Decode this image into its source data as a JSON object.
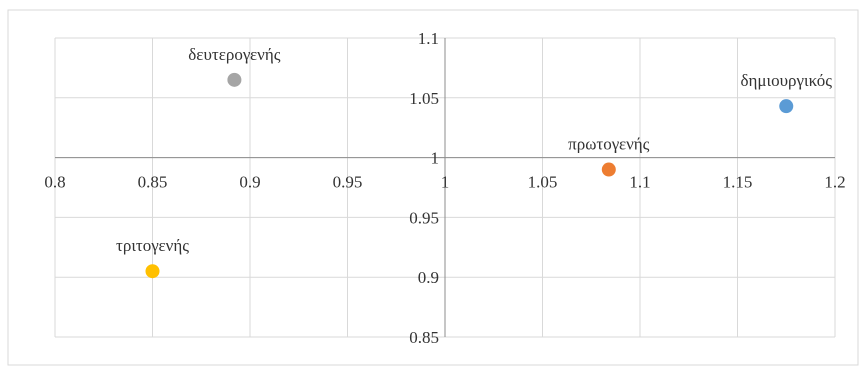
{
  "chart_data": {
    "type": "scatter",
    "xlim": [
      0.8,
      1.2
    ],
    "ylim": [
      0.85,
      1.1
    ],
    "x_ticks": [
      "0.8",
      "0.85",
      "0.9",
      "0.95",
      "1",
      "1.05",
      "1.1",
      "1.15",
      "1.2"
    ],
    "y_ticks": [
      "0.85",
      "0.9",
      "0.95",
      "1",
      "1.05",
      "1.1"
    ],
    "x_tick_values": [
      0.8,
      0.85,
      0.9,
      0.95,
      1.0,
      1.05,
      1.1,
      1.15,
      1.2
    ],
    "y_tick_values": [
      0.85,
      0.9,
      0.95,
      1.0,
      1.05,
      1.1
    ],
    "axis_cross": {
      "x": 1.0,
      "y": 1.0
    },
    "grid": true,
    "points": [
      {
        "label": "δευτερογενής",
        "x": 0.892,
        "y": 1.065,
        "color": "#a5a5a5"
      },
      {
        "label": "δημιουργικός",
        "x": 1.175,
        "y": 1.043,
        "color": "#5b9bd5"
      },
      {
        "label": "πρωτογενής",
        "x": 1.084,
        "y": 0.99,
        "color": "#ed7d31"
      },
      {
        "label": "τριτογενής",
        "x": 0.85,
        "y": 0.905,
        "color": "#ffc000"
      }
    ]
  }
}
